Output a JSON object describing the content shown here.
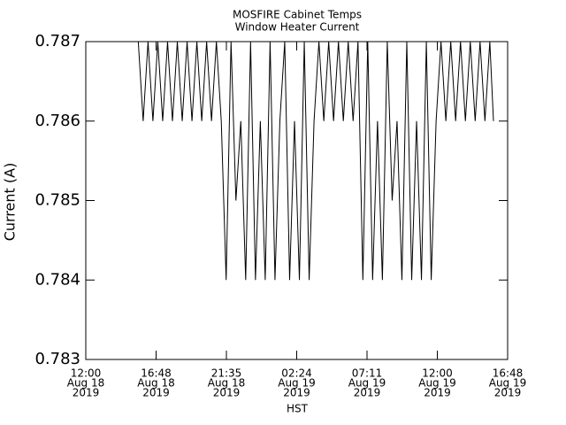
{
  "chart_data": {
    "type": "line",
    "title": [
      "MOSFIRE Cabinet Temps",
      "Window Heater Current"
    ],
    "y_label": "Current (A)",
    "x_label": "HST",
    "xlim": [
      "2019-08-18T12:00",
      "2019-08-19T16:48"
    ],
    "xticks": [
      {
        "value": "2019-08-18T12:00",
        "label": [
          "12:00",
          "Aug 18",
          "2019"
        ]
      },
      {
        "value": "2019-08-18T16:48",
        "label": [
          "16:48",
          "Aug 18",
          "2019"
        ]
      },
      {
        "value": "2019-08-18T21:36",
        "label": [
          "21:35",
          "Aug 18",
          "2019"
        ]
      },
      {
        "value": "2019-08-19T02:24",
        "label": [
          "02:24",
          "Aug 19",
          "2019"
        ]
      },
      {
        "value": "2019-08-19T07:12",
        "label": [
          "07:11",
          "Aug 19",
          "2019"
        ]
      },
      {
        "value": "2019-08-19T12:00",
        "label": [
          "12:00",
          "Aug 19",
          "2019"
        ]
      },
      {
        "value": "2019-08-19T16:48",
        "label": [
          "16:48",
          "Aug 19",
          "2019"
        ]
      }
    ],
    "ylim": [
      0.783,
      0.787
    ],
    "yticks": [
      0.783,
      0.784,
      0.785,
      0.786,
      0.787
    ],
    "series": [
      {
        "color": "#000000",
        "x": [
          "2019-08-18T15:35",
          "2019-08-18T15:55",
          "2019-08-18T16:15",
          "2019-08-18T16:35",
          "2019-08-18T16:55",
          "2019-08-18T17:15",
          "2019-08-18T17:35",
          "2019-08-18T17:55",
          "2019-08-18T18:15",
          "2019-08-18T18:35",
          "2019-08-18T18:55",
          "2019-08-18T19:15",
          "2019-08-18T19:35",
          "2019-08-18T19:55",
          "2019-08-18T20:15",
          "2019-08-18T20:35",
          "2019-08-18T20:55",
          "2019-08-18T21:15",
          "2019-08-18T21:35",
          "2019-08-18T21:55",
          "2019-08-18T22:15",
          "2019-08-18T22:35",
          "2019-08-18T22:55",
          "2019-08-18T23:15",
          "2019-08-18T23:35",
          "2019-08-18T23:55",
          "2019-08-19T00:15",
          "2019-08-19T00:35",
          "2019-08-19T00:55",
          "2019-08-19T01:15",
          "2019-08-19T01:35",
          "2019-08-19T01:55",
          "2019-08-19T02:15",
          "2019-08-19T02:35",
          "2019-08-19T02:55",
          "2019-08-19T03:15",
          "2019-08-19T03:35",
          "2019-08-19T03:55",
          "2019-08-19T04:15",
          "2019-08-19T04:35",
          "2019-08-19T04:55",
          "2019-08-19T05:15",
          "2019-08-19T05:35",
          "2019-08-19T05:55",
          "2019-08-19T06:15",
          "2019-08-19T06:35",
          "2019-08-19T06:55",
          "2019-08-19T07:15",
          "2019-08-19T07:35",
          "2019-08-19T07:55",
          "2019-08-19T08:15",
          "2019-08-19T08:35",
          "2019-08-19T08:55",
          "2019-08-19T09:15",
          "2019-08-19T09:35",
          "2019-08-19T09:55",
          "2019-08-19T10:15",
          "2019-08-19T10:35",
          "2019-08-19T10:55",
          "2019-08-19T11:15",
          "2019-08-19T11:35",
          "2019-08-19T11:55",
          "2019-08-19T12:15",
          "2019-08-19T12:35",
          "2019-08-19T12:55",
          "2019-08-19T13:15",
          "2019-08-19T13:35",
          "2019-08-19T13:55",
          "2019-08-19T14:15",
          "2019-08-19T14:35",
          "2019-08-19T14:55",
          "2019-08-19T15:15",
          "2019-08-19T15:35",
          "2019-08-19T15:50"
        ],
        "values": [
          0.787,
          0.786,
          0.787,
          0.786,
          0.787,
          0.786,
          0.787,
          0.786,
          0.787,
          0.786,
          0.787,
          0.786,
          0.787,
          0.786,
          0.787,
          0.786,
          0.787,
          0.786,
          0.784,
          0.787,
          0.785,
          0.786,
          0.784,
          0.787,
          0.784,
          0.786,
          0.784,
          0.787,
          0.784,
          0.786,
          0.787,
          0.784,
          0.786,
          0.784,
          0.787,
          0.784,
          0.786,
          0.787,
          0.786,
          0.787,
          0.786,
          0.787,
          0.786,
          0.787,
          0.786,
          0.787,
          0.784,
          0.787,
          0.784,
          0.786,
          0.784,
          0.787,
          0.785,
          0.786,
          0.784,
          0.787,
          0.784,
          0.786,
          0.784,
          0.787,
          0.784,
          0.786,
          0.787,
          0.786,
          0.787,
          0.786,
          0.787,
          0.786,
          0.787,
          0.786,
          0.787,
          0.786,
          0.787,
          0.786
        ]
      }
    ]
  }
}
